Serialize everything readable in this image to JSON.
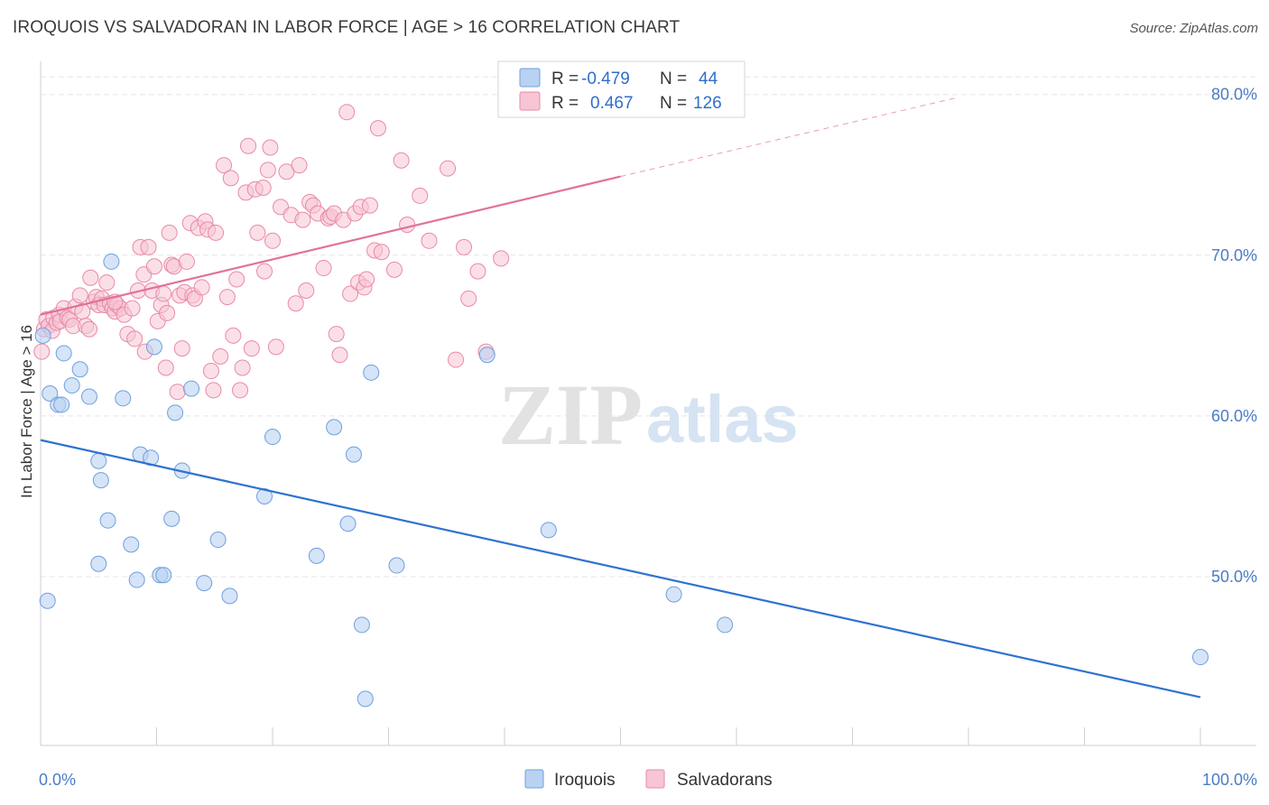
{
  "header": {
    "title": "IROQUOIS VS SALVADORAN IN LABOR FORCE | AGE > 16 CORRELATION CHART",
    "source": "Source: ZipAtlas.com"
  },
  "watermark": {
    "zip": "ZIP",
    "atlas": "atlas"
  },
  "legend_box": {
    "rows": [
      {
        "r_label": "R =",
        "r_value": "-0.479",
        "n_label": "N =",
        "n_value": "44"
      },
      {
        "r_label": "R =",
        "r_value": "0.467",
        "n_label": "N =",
        "n_value": "126"
      }
    ]
  },
  "bottom_legend": {
    "items": [
      "Iroquois",
      "Salvadorans"
    ]
  },
  "colors": {
    "iroquois_fill": "#b9d2f2",
    "iroquois_stroke": "#6f9fde",
    "iroquois_line": "#2f72d0",
    "salvadoran_fill": "#f7c5d4",
    "salvadoran_stroke": "#e88aa8",
    "salvadoran_line": "#e2719a",
    "grid": "#e5e5e5",
    "axis_text": "#4a7cc7"
  },
  "chart_data": {
    "type": "scatter",
    "title": "IROQUOIS VS SALVADORAN IN LABOR FORCE | AGE > 16 CORRELATION CHART",
    "xlabel": "",
    "ylabel": "In Labor Force | Age > 16",
    "xlim": [
      0,
      100
    ],
    "ylim": [
      39.5,
      81.5
    ],
    "x_tick_labels": [
      "0.0%",
      "100.0%"
    ],
    "y_ticks": [
      50,
      60,
      70,
      80
    ],
    "y_tick_labels": [
      "50.0%",
      "60.0%",
      "70.0%",
      "80.0%"
    ],
    "grid": true,
    "legend_position": "top-center",
    "series": [
      {
        "name": "Iroquois",
        "r": -0.479,
        "n": 44,
        "trend": {
          "x": [
            0,
            100
          ],
          "y": [
            58.5,
            42.5
          ]
        },
        "points": [
          [
            0.2,
            65.0
          ],
          [
            0.8,
            61.4
          ],
          [
            1.5,
            60.7
          ],
          [
            1.8,
            60.7
          ],
          [
            2.0,
            63.9
          ],
          [
            2.7,
            61.9
          ],
          [
            3.4,
            62.9
          ],
          [
            4.2,
            61.2
          ],
          [
            5.0,
            50.8
          ],
          [
            5.0,
            57.2
          ],
          [
            5.2,
            56.0
          ],
          [
            5.8,
            53.5
          ],
          [
            6.1,
            69.6
          ],
          [
            7.1,
            61.1
          ],
          [
            7.8,
            52.0
          ],
          [
            8.3,
            49.8
          ],
          [
            8.6,
            57.6
          ],
          [
            9.5,
            57.4
          ],
          [
            9.8,
            64.3
          ],
          [
            10.3,
            50.1
          ],
          [
            10.6,
            50.1
          ],
          [
            11.3,
            53.6
          ],
          [
            11.6,
            60.2
          ],
          [
            12.2,
            56.6
          ],
          [
            13.0,
            61.7
          ],
          [
            14.1,
            49.6
          ],
          [
            15.3,
            52.3
          ],
          [
            16.3,
            48.8
          ],
          [
            19.3,
            55.0
          ],
          [
            20.0,
            58.7
          ],
          [
            23.8,
            51.3
          ],
          [
            25.3,
            59.3
          ],
          [
            26.5,
            53.3
          ],
          [
            27.0,
            57.6
          ],
          [
            27.7,
            47.0
          ],
          [
            28.0,
            42.4
          ],
          [
            28.5,
            62.7
          ],
          [
            30.7,
            50.7
          ],
          [
            38.5,
            63.8
          ],
          [
            43.8,
            52.9
          ],
          [
            54.6,
            48.9
          ],
          [
            59.0,
            47.0
          ],
          [
            100.0,
            45.0
          ],
          [
            0.6,
            48.5
          ]
        ]
      },
      {
        "name": "Salvadorans",
        "r": 0.467,
        "n": 126,
        "trend": {
          "x": [
            0,
            50
          ],
          "y": [
            66.3,
            74.9
          ]
        },
        "trend_dashed": {
          "x": [
            50,
            79
          ],
          "y": [
            74.9,
            79.8
          ]
        },
        "points": [
          [
            0.1,
            64.0
          ],
          [
            0.3,
            65.4
          ],
          [
            0.5,
            66.0
          ],
          [
            0.7,
            65.6
          ],
          [
            1.0,
            65.3
          ],
          [
            1.1,
            66.1
          ],
          [
            1.4,
            65.8
          ],
          [
            1.6,
            66.3
          ],
          [
            1.7,
            65.9
          ],
          [
            2.0,
            66.7
          ],
          [
            2.3,
            66.1
          ],
          [
            2.5,
            66.0
          ],
          [
            2.8,
            65.6
          ],
          [
            3.0,
            66.8
          ],
          [
            3.4,
            67.5
          ],
          [
            3.6,
            66.5
          ],
          [
            3.9,
            65.6
          ],
          [
            4.2,
            65.4
          ],
          [
            4.3,
            68.6
          ],
          [
            4.6,
            67.1
          ],
          [
            4.8,
            67.4
          ],
          [
            5.0,
            66.9
          ],
          [
            5.3,
            67.3
          ],
          [
            5.5,
            66.9
          ],
          [
            5.7,
            68.3
          ],
          [
            6.0,
            67.0
          ],
          [
            6.2,
            66.7
          ],
          [
            6.4,
            66.5
          ],
          [
            6.6,
            66.9
          ],
          [
            6.9,
            66.7
          ],
          [
            7.2,
            66.3
          ],
          [
            7.5,
            65.1
          ],
          [
            7.9,
            66.7
          ],
          [
            8.1,
            64.8
          ],
          [
            8.4,
            67.8
          ],
          [
            8.6,
            70.5
          ],
          [
            8.9,
            68.8
          ],
          [
            9.0,
            64.0
          ],
          [
            9.3,
            70.5
          ],
          [
            9.6,
            67.8
          ],
          [
            9.8,
            69.3
          ],
          [
            10.1,
            65.9
          ],
          [
            10.4,
            66.9
          ],
          [
            10.6,
            67.6
          ],
          [
            10.8,
            63.0
          ],
          [
            10.9,
            66.4
          ],
          [
            11.1,
            71.4
          ],
          [
            11.3,
            69.4
          ],
          [
            11.5,
            69.3
          ],
          [
            11.8,
            61.5
          ],
          [
            12.0,
            67.5
          ],
          [
            12.2,
            64.2
          ],
          [
            12.4,
            67.7
          ],
          [
            12.6,
            69.6
          ],
          [
            12.9,
            72.0
          ],
          [
            13.1,
            67.5
          ],
          [
            13.3,
            67.3
          ],
          [
            13.6,
            71.7
          ],
          [
            13.9,
            68.0
          ],
          [
            14.2,
            72.1
          ],
          [
            14.4,
            71.6
          ],
          [
            14.7,
            62.8
          ],
          [
            14.9,
            61.6
          ],
          [
            15.1,
            71.4
          ],
          [
            15.5,
            63.7
          ],
          [
            15.8,
            75.6
          ],
          [
            16.1,
            67.4
          ],
          [
            16.4,
            74.8
          ],
          [
            16.6,
            65.0
          ],
          [
            16.9,
            68.5
          ],
          [
            17.2,
            61.6
          ],
          [
            17.4,
            63.0
          ],
          [
            17.7,
            73.9
          ],
          [
            17.9,
            76.8
          ],
          [
            18.2,
            64.2
          ],
          [
            18.5,
            74.1
          ],
          [
            18.7,
            71.4
          ],
          [
            19.2,
            74.2
          ],
          [
            19.3,
            69.0
          ],
          [
            19.6,
            75.3
          ],
          [
            19.8,
            76.7
          ],
          [
            20.0,
            70.9
          ],
          [
            20.3,
            64.3
          ],
          [
            20.7,
            73.0
          ],
          [
            21.2,
            75.2
          ],
          [
            21.6,
            72.5
          ],
          [
            22.0,
            67.0
          ],
          [
            22.3,
            75.6
          ],
          [
            22.6,
            72.2
          ],
          [
            22.9,
            67.8
          ],
          [
            23.2,
            73.3
          ],
          [
            23.5,
            73.1
          ],
          [
            23.9,
            72.6
          ],
          [
            24.4,
            69.2
          ],
          [
            24.8,
            72.3
          ],
          [
            25.0,
            72.4
          ],
          [
            25.3,
            72.6
          ],
          [
            25.5,
            65.1
          ],
          [
            25.8,
            63.8
          ],
          [
            26.1,
            72.2
          ],
          [
            26.4,
            78.9
          ],
          [
            26.7,
            67.6
          ],
          [
            27.1,
            72.6
          ],
          [
            27.4,
            68.3
          ],
          [
            27.6,
            73.0
          ],
          [
            27.9,
            68.0
          ],
          [
            28.1,
            68.5
          ],
          [
            28.4,
            73.1
          ],
          [
            28.8,
            70.3
          ],
          [
            29.1,
            77.9
          ],
          [
            29.4,
            70.2
          ],
          [
            30.5,
            69.1
          ],
          [
            31.1,
            75.9
          ],
          [
            31.6,
            71.9
          ],
          [
            32.7,
            73.7
          ],
          [
            33.5,
            70.9
          ],
          [
            35.1,
            75.4
          ],
          [
            35.8,
            63.5
          ],
          [
            36.5,
            70.5
          ],
          [
            36.9,
            67.3
          ],
          [
            37.7,
            69.0
          ],
          [
            39.7,
            69.8
          ],
          [
            38.4,
            64.0
          ],
          [
            6.4,
            67.1
          ]
        ]
      }
    ]
  }
}
